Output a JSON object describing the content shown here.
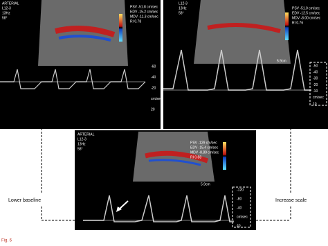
{
  "panels": [
    {
      "header": [
        "ARTERIAL",
        "L12-3",
        "13Hz",
        "58°"
      ],
      "measurements": [
        "PSV -51.8 cm/sec",
        "EDV -15.2 cm/sec",
        "MDV -11.3 cm/sec",
        "RI 0.78"
      ],
      "scale": [
        "-60",
        "-40",
        "-20",
        "cm/sec",
        "20"
      ]
    },
    {
      "header": [
        "L12-3",
        "13Hz",
        "58°"
      ],
      "measurements": [
        "PSV -51.0 cm/sec",
        "EDV -12.5 cm/sec",
        "MDV -8.00 cm/sec",
        "RI 0.76"
      ],
      "depth": "5.9cm",
      "scale": [
        "-50",
        "-40",
        "-30",
        "-20",
        "-10",
        "cm/sec",
        "10"
      ]
    },
    {
      "header": [
        "ARTERIAL",
        "L12-3",
        "13Hz",
        "58°"
      ],
      "measurements": [
        "PSV -129 cm/sec",
        "EDV -15.4 cm/sec",
        "MDV -8.80 cm/sec",
        "RI 0.88"
      ],
      "depth": "5.9cm",
      "scale": [
        "-120",
        "-80",
        "-40",
        "cm/sec",
        "40"
      ]
    }
  ],
  "annotations": {
    "left": "Lower baseline",
    "right": "Increase scale"
  },
  "caption": "Fig. 6"
}
